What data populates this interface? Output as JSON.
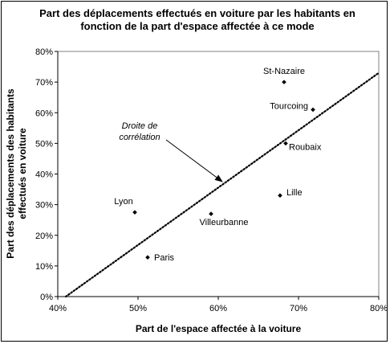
{
  "chart_data": {
    "type": "scatter",
    "title": [
      "Part des déplacements effectués en voiture par les habitants en",
      "fonction de la part d'espace affectée à ce mode"
    ],
    "xlabel": "Part de l'espace affectée à la voiture",
    "ylabel": [
      "Part des déplacements des habitants",
      "effectués en voiture"
    ],
    "xlim": [
      0.4,
      0.8
    ],
    "ylim": [
      0.0,
      0.8
    ],
    "xticks": [
      0.4,
      0.5,
      0.6,
      0.7,
      0.8
    ],
    "xtick_labels": [
      "40%",
      "50%",
      "60%",
      "70%",
      "80%"
    ],
    "yticks": [
      0.0,
      0.1,
      0.2,
      0.3,
      0.4,
      0.5,
      0.6,
      0.7,
      0.8
    ],
    "ytick_labels": [
      "0%",
      "10%",
      "20%",
      "30%",
      "40%",
      "50%",
      "60%",
      "70%",
      "80%"
    ],
    "grid": false,
    "points": [
      {
        "label": "St-Nazaire",
        "x": 0.682,
        "y": 0.7
      },
      {
        "label": "Tourcoing",
        "x": 0.718,
        "y": 0.61
      },
      {
        "label": "Roubaix",
        "x": 0.684,
        "y": 0.5
      },
      {
        "label": "Lille",
        "x": 0.677,
        "y": 0.33
      },
      {
        "label": "Lyon",
        "x": 0.496,
        "y": 0.275
      },
      {
        "label": "Villeurbanne",
        "x": 0.591,
        "y": 0.27
      },
      {
        "label": "Paris",
        "x": 0.512,
        "y": 0.128
      }
    ],
    "trendline": {
      "label": [
        "Droite de",
        "corrélation"
      ],
      "x": [
        0.41,
        0.8
      ],
      "y": [
        0.0,
        0.73
      ],
      "style": "dotted"
    },
    "annotation_arrow_target": {
      "x": 0.605,
      "y": 0.375
    }
  }
}
